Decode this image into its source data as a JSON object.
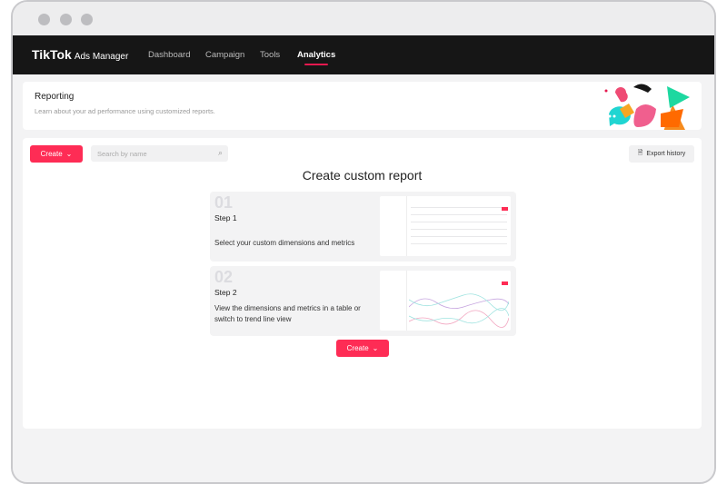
{
  "nav": {
    "logo": "TikTok",
    "logo_sub": "Ads Manager",
    "items": [
      {
        "label": "Dashboard"
      },
      {
        "label": "Campaign"
      },
      {
        "label": "Tools"
      },
      {
        "label": "Analytics",
        "active": true
      }
    ]
  },
  "header": {
    "title": "Reporting",
    "subtitle": "Learn about your ad performance using customized reports."
  },
  "toolbar": {
    "create_label": "Create",
    "search_placeholder": "Search by name",
    "export_label": "Export history"
  },
  "main": {
    "title": "Create custom report",
    "steps": [
      {
        "num": "01",
        "label": "Step 1",
        "desc": "Select your custom dimensions and metrics"
      },
      {
        "num": "02",
        "label": "Step 2",
        "desc": "View the dimensions and metrics in a table or switch to trend line view"
      }
    ],
    "create_label": "Create"
  },
  "colors": {
    "accent": "#fe2c55",
    "nav_bg": "#161616"
  }
}
